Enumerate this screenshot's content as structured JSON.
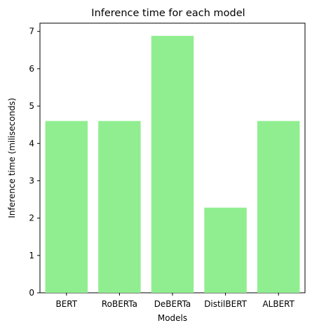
{
  "chart_data": {
    "type": "bar",
    "title": "Inference time for each model",
    "xlabel": "Models",
    "ylabel": "Inference time (miliseconds)",
    "categories": [
      "BERT",
      "RoBERTa",
      "DeBERTa",
      "DistilBERT",
      "ALBERT"
    ],
    "values": [
      4.6,
      4.6,
      6.88,
      2.28,
      4.6
    ],
    "ylim": [
      0,
      7.22
    ],
    "yticks": [
      "0",
      "1",
      "2",
      "3",
      "4",
      "5",
      "6",
      "7"
    ],
    "bar_color": "#90ee90",
    "grid": false,
    "legend": "none"
  }
}
